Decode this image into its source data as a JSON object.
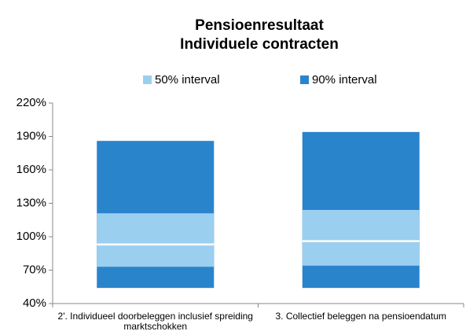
{
  "chart_data": {
    "type": "floating-bar",
    "title": [
      "Pensioenresultaat",
      "Individuele contracten"
    ],
    "categories": [
      "2'. Individueel doorbeleggen inclusief spreiding marktschokken",
      "3. Collectief beleggen na pensioendatum"
    ],
    "series": [
      {
        "name": "50% interval",
        "color": "#9bcff0",
        "low": [
          73,
          74
        ],
        "high": [
          121,
          124
        ]
      },
      {
        "name": "90% interval",
        "color": "#2a84cc",
        "low": [
          54,
          54
        ],
        "high": [
          186,
          194
        ]
      }
    ],
    "median": [
      93,
      96
    ],
    "median_color": "#ffffff",
    "ylim": [
      40,
      220
    ],
    "yticks": [
      {
        "value": 40,
        "label": "40%"
      },
      {
        "value": 70,
        "label": "70%"
      },
      {
        "value": 100,
        "label": "100%"
      },
      {
        "value": 130,
        "label": "130%"
      },
      {
        "value": 160,
        "label": "160%"
      },
      {
        "value": 190,
        "label": "190%"
      },
      {
        "value": 220,
        "label": "220%"
      }
    ],
    "grid": false
  }
}
